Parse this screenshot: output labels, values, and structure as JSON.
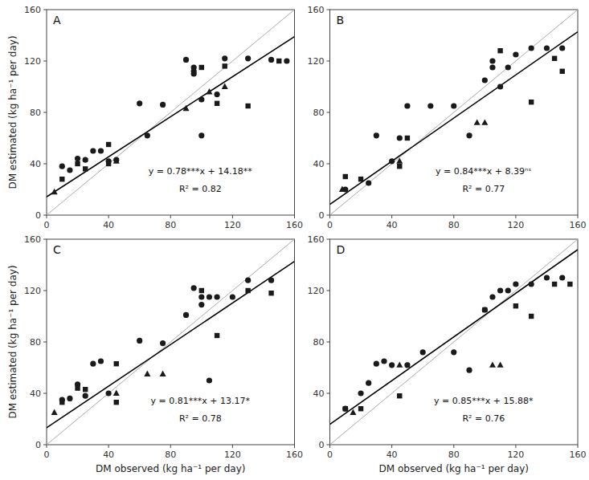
{
  "chart_data": [
    {
      "type": "scatter",
      "title": "A",
      "ylabel": "DM estimated (kg ha⁻¹ per day)",
      "annotations": [
        "y = 0.78***x + 14.18**",
        "R² = 0.82"
      ],
      "xlim": [
        0,
        160
      ],
      "ylim": [
        0,
        160
      ],
      "xticks": [
        0,
        40,
        80,
        120,
        160
      ],
      "yticks": [
        0,
        40,
        80,
        120,
        160
      ],
      "grid": false,
      "series": [
        {
          "type": "line",
          "color": "#aaaaaa",
          "x": [
            0,
            160
          ],
          "values": [
            0,
            160
          ]
        },
        {
          "type": "line",
          "color": "#000000",
          "x": [
            0,
            160
          ],
          "values": [
            14.18,
            138.98
          ]
        },
        {
          "type": "scatter",
          "marker": "circle",
          "color": "#1a1a1a",
          "x": [
            10,
            15,
            20,
            25,
            30,
            35,
            40,
            45,
            60,
            65,
            75,
            90,
            95,
            95,
            95,
            100,
            100,
            110,
            115,
            130,
            145,
            155
          ],
          "values": [
            38,
            35,
            44,
            43,
            50,
            50,
            42,
            43,
            87,
            62,
            86,
            121,
            115,
            112,
            110,
            90,
            62,
            94,
            122,
            122,
            121,
            120
          ]
        },
        {
          "type": "scatter",
          "marker": "square",
          "color": "#1a1a1a",
          "x": [
            10,
            20,
            25,
            40,
            40,
            100,
            110,
            115,
            130,
            150
          ],
          "values": [
            28,
            40,
            36,
            40,
            55,
            115,
            87,
            116,
            85,
            120
          ]
        },
        {
          "type": "scatter",
          "marker": "triangle",
          "color": "#1a1a1a",
          "x": [
            5,
            45,
            90,
            105,
            115
          ],
          "values": [
            18,
            42,
            83,
            96,
            100
          ]
        }
      ]
    },
    {
      "type": "scatter",
      "title": "B",
      "annotations": [
        "y = 0.84***x + 8.39ⁿˢ",
        "R² = 0.77"
      ],
      "xlim": [
        0,
        160
      ],
      "ylim": [
        0,
        160
      ],
      "xticks": [
        0,
        40,
        80,
        120,
        160
      ],
      "yticks": [
        0,
        40,
        80,
        120,
        160
      ],
      "grid": false,
      "series": [
        {
          "type": "line",
          "color": "#aaaaaa",
          "x": [
            0,
            160
          ],
          "values": [
            0,
            160
          ]
        },
        {
          "type": "line",
          "color": "#000000",
          "x": [
            0,
            160
          ],
          "values": [
            8.39,
            142.79
          ]
        },
        {
          "type": "scatter",
          "marker": "circle",
          "color": "#1a1a1a",
          "x": [
            10,
            25,
            30,
            40,
            45,
            50,
            65,
            80,
            90,
            100,
            105,
            105,
            110,
            115,
            120,
            130,
            140,
            150
          ],
          "values": [
            20,
            25,
            62,
            42,
            60,
            85,
            85,
            85,
            62,
            105,
            115,
            120,
            100,
            115,
            125,
            130,
            130,
            130
          ]
        },
        {
          "type": "scatter",
          "marker": "square",
          "color": "#1a1a1a",
          "x": [
            10,
            20,
            45,
            50,
            110,
            130,
            145,
            150
          ],
          "values": [
            30,
            28,
            38,
            60,
            128,
            88,
            122,
            112
          ]
        },
        {
          "type": "scatter",
          "marker": "triangle",
          "color": "#1a1a1a",
          "x": [
            8,
            45,
            95,
            100
          ],
          "values": [
            20,
            42,
            72,
            72
          ]
        }
      ]
    },
    {
      "type": "scatter",
      "title": "C",
      "xlabel": "DM observed (kg ha⁻¹ per day)",
      "ylabel": "DM estimated (kg ha⁻¹ per day)",
      "annotations": [
        "y = 0.81***x + 13.17*",
        "R² = 0.78"
      ],
      "xlim": [
        0,
        160
      ],
      "ylim": [
        0,
        160
      ],
      "xticks": [
        0,
        40,
        80,
        120,
        160
      ],
      "yticks": [
        0,
        40,
        80,
        120,
        160
      ],
      "grid": false,
      "series": [
        {
          "type": "line",
          "color": "#aaaaaa",
          "x": [
            0,
            160
          ],
          "values": [
            0,
            160
          ]
        },
        {
          "type": "line",
          "color": "#000000",
          "x": [
            0,
            160
          ],
          "values": [
            13.17,
            142.77
          ]
        },
        {
          "type": "scatter",
          "marker": "circle",
          "color": "#1a1a1a",
          "x": [
            10,
            15,
            20,
            25,
            30,
            35,
            40,
            60,
            75,
            90,
            95,
            100,
            100,
            105,
            105,
            110,
            120,
            130,
            145
          ],
          "values": [
            35,
            36,
            47,
            38,
            63,
            65,
            40,
            81,
            79,
            101,
            122,
            115,
            109,
            115,
            50,
            115,
            115,
            128,
            128
          ]
        },
        {
          "type": "scatter",
          "marker": "square",
          "color": "#1a1a1a",
          "x": [
            10,
            20,
            25,
            45,
            45,
            100,
            110,
            130,
            145
          ],
          "values": [
            33,
            44,
            43,
            33,
            63,
            120,
            85,
            120,
            118
          ]
        },
        {
          "type": "scatter",
          "marker": "triangle",
          "color": "#1a1a1a",
          "x": [
            5,
            45,
            65,
            75
          ],
          "values": [
            25,
            40,
            55,
            55
          ]
        }
      ]
    },
    {
      "type": "scatter",
      "title": "D",
      "xlabel": "DM observed (kg ha⁻¹ per day)",
      "annotations": [
        "y = 0.85***x + 15.88*",
        "R² = 0.76"
      ],
      "xlim": [
        0,
        160
      ],
      "ylim": [
        0,
        160
      ],
      "xticks": [
        0,
        40,
        80,
        120,
        160
      ],
      "yticks": [
        0,
        40,
        80,
        120,
        160
      ],
      "grid": false,
      "series": [
        {
          "type": "line",
          "color": "#aaaaaa",
          "x": [
            0,
            160
          ],
          "values": [
            0,
            160
          ]
        },
        {
          "type": "line",
          "color": "#000000",
          "x": [
            0,
            160
          ],
          "values": [
            15.88,
            151.88
          ]
        },
        {
          "type": "scatter",
          "marker": "circle",
          "color": "#1a1a1a",
          "x": [
            10,
            20,
            25,
            30,
            35,
            40,
            50,
            60,
            80,
            90,
            100,
            105,
            110,
            115,
            120,
            130,
            140,
            150
          ],
          "values": [
            28,
            40,
            48,
            63,
            65,
            62,
            62,
            72,
            72,
            58,
            105,
            115,
            120,
            120,
            125,
            125,
            130,
            130
          ]
        },
        {
          "type": "scatter",
          "marker": "square",
          "color": "#1a1a1a",
          "x": [
            10,
            20,
            45,
            100,
            120,
            130,
            145,
            155
          ],
          "values": [
            28,
            28,
            38,
            105,
            108,
            100,
            125,
            125
          ]
        },
        {
          "type": "scatter",
          "marker": "triangle",
          "color": "#1a1a1a",
          "x": [
            15,
            45,
            105,
            110
          ],
          "values": [
            25,
            62,
            62,
            62
          ]
        }
      ]
    }
  ]
}
